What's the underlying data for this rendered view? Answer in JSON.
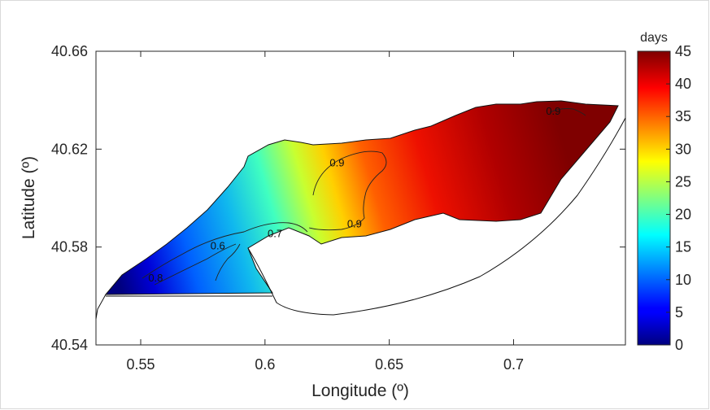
{
  "chart_data": {
    "type": "heatmap",
    "title": "",
    "xlabel": "Longitude (º)",
    "ylabel": "Latitude (º)",
    "xlim": [
      0.532,
      0.745
    ],
    "ylim": [
      40.54,
      40.66
    ],
    "x_ticks": [
      0.55,
      0.6,
      0.65,
      0.7
    ],
    "x_tick_labels": [
      "0.55",
      "0.6",
      "0.65",
      "0.7"
    ],
    "y_ticks": [
      40.54,
      40.58,
      40.62,
      40.66
    ],
    "y_tick_labels": [
      "40.54",
      "40.58",
      "40.62",
      "40.66"
    ],
    "grid": false,
    "colorbar": {
      "title": "days",
      "colormap": "jet",
      "range": [
        0,
        45
      ],
      "ticks": [
        0,
        5,
        10,
        15,
        20,
        25,
        30,
        35,
        40,
        45
      ],
      "tick_labels": [
        "0",
        "5",
        "10",
        "15",
        "20",
        "25",
        "30",
        "35",
        "40",
        "45"
      ]
    },
    "field_trend": "Residence time increases from about 0–5 days in the southwest to about 45 days in the northeast",
    "contours": [
      {
        "label": "0.9",
        "x": 0.629,
        "y": 40.613
      },
      {
        "label": "0.9",
        "x": 0.636,
        "y": 40.588
      },
      {
        "label": "0.9",
        "x": 0.716,
        "y": 40.634
      },
      {
        "label": "0.7",
        "x": 0.604,
        "y": 40.584
      },
      {
        "label": "0.6",
        "x": 0.581,
        "y": 40.579
      },
      {
        "label": "0.8",
        "x": 0.556,
        "y": 40.566
      }
    ]
  }
}
